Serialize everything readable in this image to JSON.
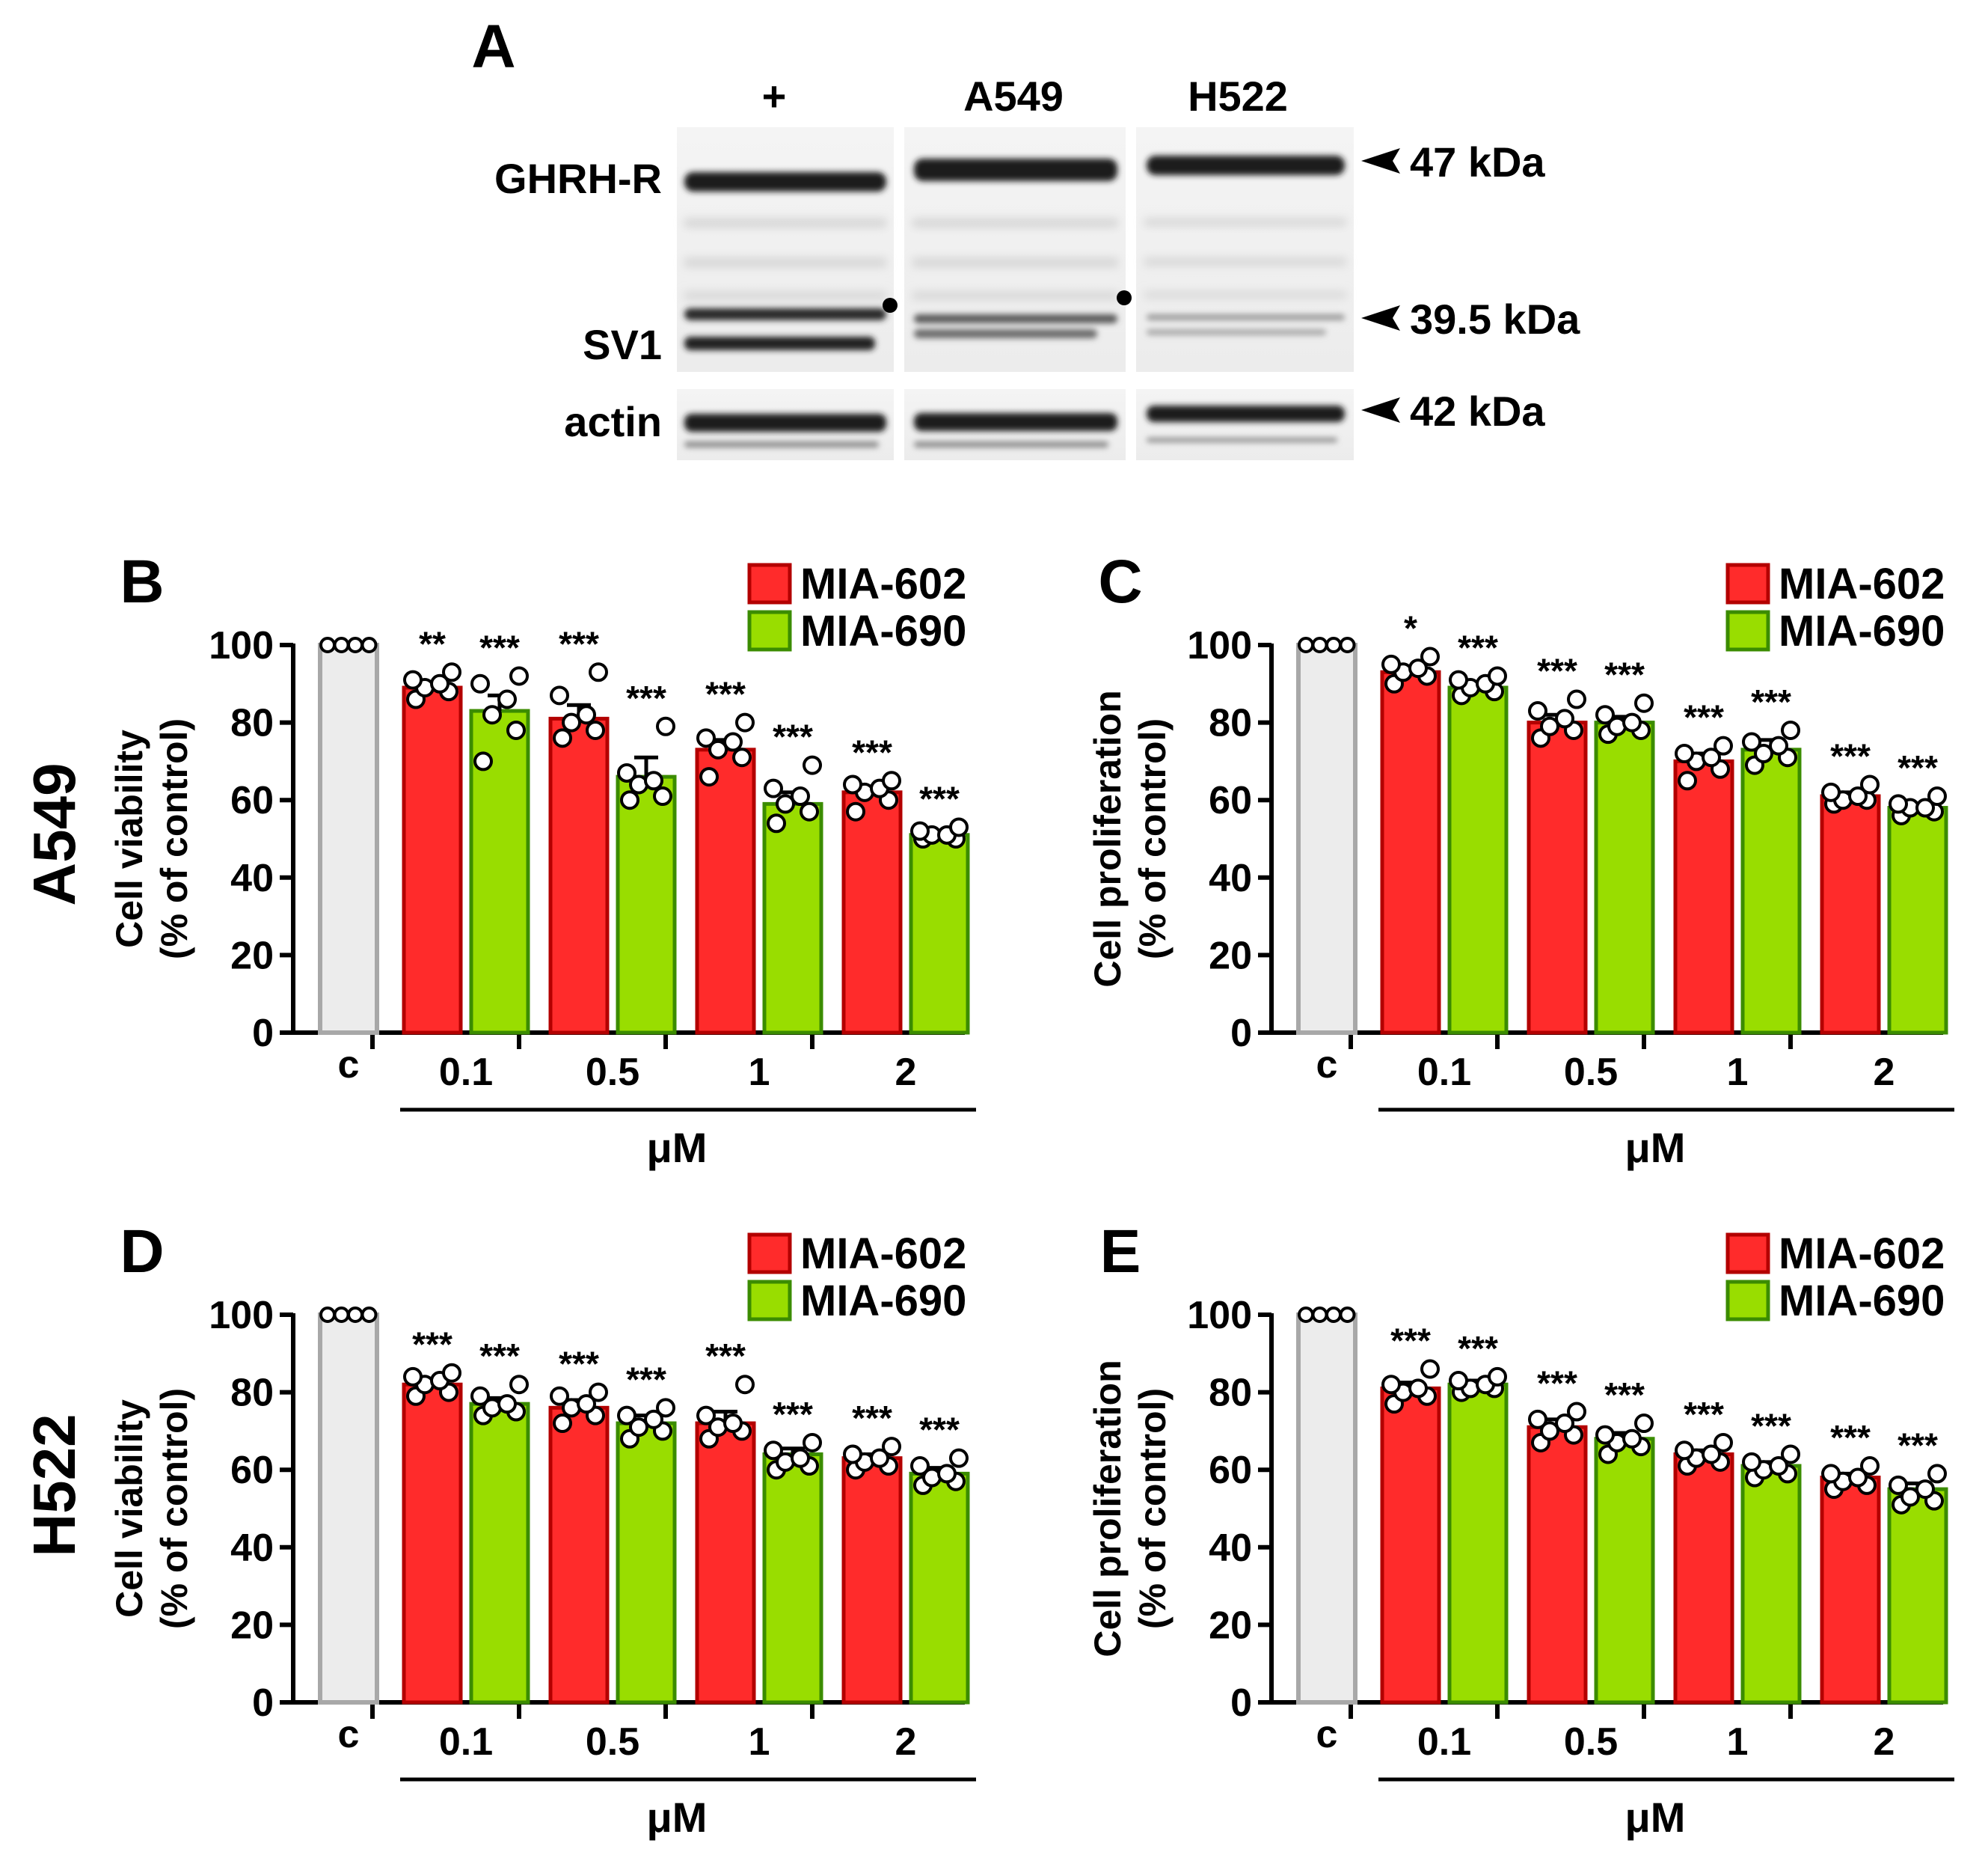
{
  "figure": {
    "panel_a": {
      "letter": "A",
      "lane_labels": [
        "+",
        "A549",
        "H522"
      ],
      "band_labels": [
        "GHRH-R",
        "SV1",
        "actin"
      ],
      "size_markers": [
        "47 kDa",
        "39.5 kDa",
        "42 kDa"
      ]
    },
    "row_labels": [
      "A549",
      "H522"
    ],
    "legend": [
      "MIA-602",
      "MIA-690"
    ],
    "colors": {
      "mia602_fill": "#ff2b2b",
      "mia602_edge": "#b30000",
      "mia690_fill": "#99dd00",
      "mia690_edge": "#3b8c00",
      "control_fill": "#ececec",
      "control_edge": "#a8a8a8"
    },
    "unit_label": "μM"
  },
  "chart_data": [
    {
      "type": "bar",
      "panel": "B",
      "row": "A549",
      "ylabel": [
        "Cell viability",
        "(% of control)"
      ],
      "xlabel": "μM",
      "control_label": "c",
      "control_value": 100,
      "categories": [
        "0.1",
        "0.5",
        "1",
        "2"
      ],
      "ylim": [
        0,
        100
      ],
      "yticks": [
        0,
        20,
        40,
        60,
        80,
        100
      ],
      "series": [
        {
          "name": "MIA-602",
          "values": [
            89,
            81,
            73,
            62
          ],
          "sem": [
            1.5,
            3.5,
            2.5,
            1.5
          ],
          "points": [
            [
              86,
              88,
              89,
              90,
              91,
              93
            ],
            [
              76,
              78,
              80,
              82,
              87,
              93
            ],
            [
              66,
              71,
              73,
              75,
              76,
              80
            ],
            [
              57,
              60,
              62,
              63,
              64,
              65
            ]
          ],
          "significance": [
            "**",
            "***",
            "***",
            "***"
          ]
        },
        {
          "name": "MIA-690",
          "values": [
            83,
            66,
            59,
            51
          ],
          "sem": [
            4,
            5,
            3,
            0.7
          ],
          "points": [
            [
              70,
              78,
              82,
              86,
              90,
              92
            ],
            [
              60,
              61,
              64,
              65,
              67,
              79
            ],
            [
              54,
              57,
              59,
              61,
              63,
              69
            ],
            [
              50,
              50,
              51,
              51,
              52,
              53
            ]
          ],
          "significance": [
            "***",
            "***",
            "***",
            "***"
          ]
        }
      ]
    },
    {
      "type": "bar",
      "panel": "C",
      "row": "A549",
      "ylabel": [
        "Cell proliferation",
        "(% of control)"
      ],
      "xlabel": "μM",
      "control_label": "c",
      "control_value": 100,
      "categories": [
        "0.1",
        "0.5",
        "1",
        "2"
      ],
      "ylim": [
        0,
        100
      ],
      "yticks": [
        0,
        20,
        40,
        60,
        80,
        100
      ],
      "series": [
        {
          "name": "MIA-602",
          "values": [
            93,
            80,
            70,
            61
          ],
          "sem": [
            1,
            2,
            2,
            1
          ],
          "points": [
            [
              90,
              92,
              93,
              94,
              95,
              97
            ],
            [
              76,
              78,
              79,
              81,
              83,
              86
            ],
            [
              65,
              68,
              70,
              71,
              72,
              74
            ],
            [
              59,
              60,
              60,
              61,
              62,
              64
            ]
          ],
          "significance": [
            "*",
            "***",
            "***",
            "***"
          ]
        },
        {
          "name": "MIA-690",
          "values": [
            89,
            80,
            73,
            58
          ],
          "sem": [
            1,
            1.5,
            2.5,
            1
          ],
          "points": [
            [
              87,
              88,
              89,
              90,
              91,
              92
            ],
            [
              77,
              78,
              79,
              80,
              82,
              85
            ],
            [
              69,
              71,
              72,
              74,
              75,
              78
            ],
            [
              56,
              57,
              58,
              58,
              59,
              61
            ]
          ],
          "significance": [
            "***",
            "***",
            "***",
            "***"
          ]
        }
      ]
    },
    {
      "type": "bar",
      "panel": "D",
      "row": "H522",
      "ylabel": [
        "Cell viability",
        "(% of control)"
      ],
      "xlabel": "μM",
      "control_label": "c",
      "control_value": 100,
      "categories": [
        "0.1",
        "0.5",
        "1",
        "2"
      ],
      "ylim": [
        0,
        100
      ],
      "yticks": [
        0,
        20,
        40,
        60,
        80,
        100
      ],
      "series": [
        {
          "name": "MIA-602",
          "values": [
            82,
            76,
            72,
            63
          ],
          "sem": [
            1.5,
            2,
            3,
            1
          ],
          "points": [
            [
              79,
              80,
              82,
              83,
              84,
              85
            ],
            [
              72,
              74,
              76,
              77,
              79,
              80
            ],
            [
              68,
              70,
              71,
              72,
              74,
              82
            ],
            [
              60,
              61,
              62,
              63,
              64,
              66
            ]
          ],
          "significance": [
            "***",
            "***",
            "***",
            "***"
          ]
        },
        {
          "name": "MIA-690",
          "values": [
            77,
            72,
            64,
            59
          ],
          "sem": [
            1.5,
            2,
            1.5,
            1.5
          ],
          "points": [
            [
              74,
              75,
              76,
              77,
              79,
              82
            ],
            [
              68,
              70,
              71,
              73,
              74,
              76
            ],
            [
              60,
              61,
              62,
              63,
              65,
              67
            ],
            [
              56,
              57,
              58,
              59,
              61,
              63
            ]
          ],
          "significance": [
            "***",
            "***",
            "***",
            "***"
          ]
        }
      ]
    },
    {
      "type": "bar",
      "panel": "E",
      "row": "H522",
      "ylabel": [
        "Cell proliferation",
        "(% of control)"
      ],
      "xlabel": "μM",
      "control_label": "c",
      "control_value": 100,
      "categories": [
        "0.1",
        "0.5",
        "1",
        "2"
      ],
      "ylim": [
        0,
        100
      ],
      "yticks": [
        0,
        20,
        40,
        60,
        80,
        100
      ],
      "series": [
        {
          "name": "MIA-602",
          "values": [
            81,
            71,
            64,
            58
          ],
          "sem": [
            1.5,
            2,
            1,
            1
          ],
          "points": [
            [
              77,
              79,
              80,
              81,
              82,
              86
            ],
            [
              67,
              69,
              70,
              72,
              73,
              75
            ],
            [
              61,
              62,
              63,
              64,
              65,
              67
            ],
            [
              55,
              56,
              57,
              58,
              59,
              61
            ]
          ],
          "significance": [
            "***",
            "***",
            "***",
            "***"
          ]
        },
        {
          "name": "MIA-690",
          "values": [
            82,
            68,
            61,
            55
          ],
          "sem": [
            1,
            1.5,
            1,
            1.5
          ],
          "points": [
            [
              80,
              81,
              81,
              82,
              83,
              84
            ],
            [
              64,
              66,
              67,
              68,
              69,
              72
            ],
            [
              58,
              59,
              60,
              61,
              62,
              64
            ],
            [
              51,
              52,
              53,
              55,
              56,
              59
            ]
          ],
          "significance": [
            "***",
            "***",
            "***",
            "***"
          ]
        }
      ]
    }
  ]
}
